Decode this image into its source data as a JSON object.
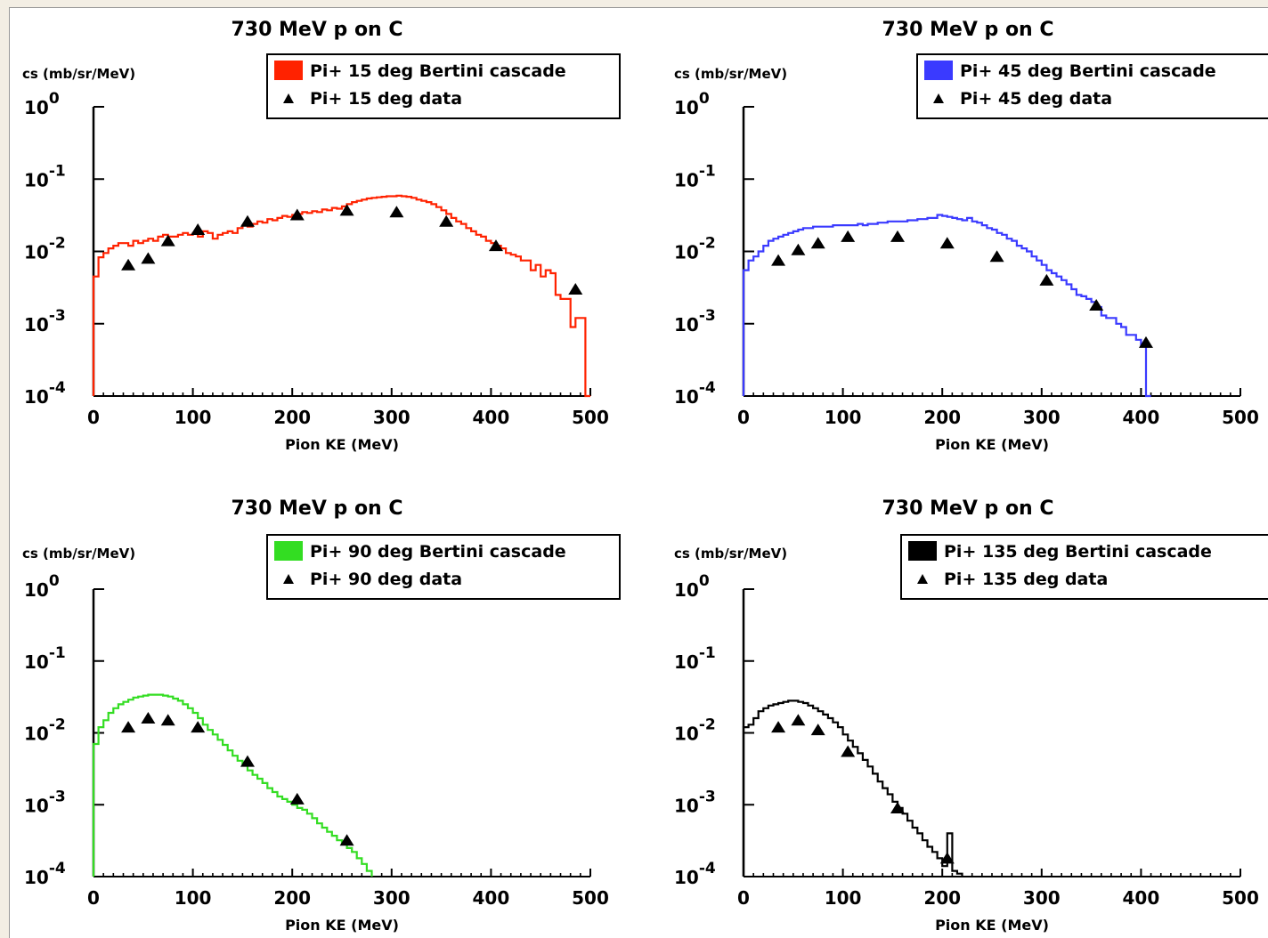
{
  "chart_data": [
    {
      "type": "line",
      "title": "730 MeV p on C",
      "ylabel": "cs (mb/sr/MeV)",
      "xlabel": "Pion KE (MeV)",
      "xlim": [
        0,
        500
      ],
      "ylim": [
        0.0001,
        1
      ],
      "yscale": "log",
      "xticks": [
        "0",
        "100",
        "200",
        "300",
        "400",
        "500"
      ],
      "yticks": [
        {
          "base": "10",
          "exp": "0"
        },
        {
          "base": "10",
          "exp": "-1"
        },
        {
          "base": "10",
          "exp": "-2"
        },
        {
          "base": "10",
          "exp": "-3"
        },
        {
          "base": "10",
          "exp": "-4"
        }
      ],
      "legend_placement": "top-right",
      "series": [
        {
          "name": "Pi+ 15 deg Bertini cascade",
          "style": "histogram",
          "color": "#ff2200",
          "x": [
            0,
            5,
            10,
            15,
            20,
            25,
            30,
            35,
            40,
            45,
            50,
            55,
            60,
            65,
            70,
            75,
            80,
            85,
            90,
            95,
            100,
            105,
            110,
            115,
            120,
            125,
            130,
            135,
            140,
            145,
            150,
            155,
            160,
            165,
            170,
            175,
            180,
            185,
            190,
            195,
            200,
            205,
            210,
            215,
            220,
            225,
            230,
            235,
            240,
            245,
            250,
            255,
            260,
            265,
            270,
            275,
            280,
            285,
            290,
            295,
            300,
            305,
            310,
            315,
            320,
            325,
            330,
            335,
            340,
            345,
            350,
            355,
            360,
            365,
            370,
            375,
            380,
            385,
            390,
            395,
            400,
            405,
            410,
            415,
            420,
            425,
            430,
            435,
            440,
            445,
            450,
            455,
            460,
            465,
            470,
            475,
            480,
            485,
            490,
            495
          ],
          "y": [
            0.0045,
            0.0083,
            0.0095,
            0.011,
            0.012,
            0.013,
            0.013,
            0.012,
            0.014,
            0.013,
            0.014,
            0.015,
            0.014,
            0.016,
            0.017,
            0.016,
            0.016,
            0.017,
            0.018,
            0.017,
            0.018,
            0.016,
            0.019,
            0.018,
            0.015,
            0.017,
            0.018,
            0.019,
            0.018,
            0.021,
            0.023,
            0.022,
            0.024,
            0.026,
            0.025,
            0.028,
            0.027,
            0.029,
            0.031,
            0.03,
            0.032,
            0.033,
            0.035,
            0.034,
            0.036,
            0.035,
            0.038,
            0.037,
            0.04,
            0.039,
            0.042,
            0.045,
            0.048,
            0.05,
            0.052,
            0.054,
            0.055,
            0.056,
            0.057,
            0.058,
            0.058,
            0.059,
            0.058,
            0.057,
            0.055,
            0.052,
            0.05,
            0.048,
            0.045,
            0.041,
            0.037,
            0.033,
            0.029,
            0.026,
            0.024,
            0.021,
            0.019,
            0.017,
            0.016,
            0.014,
            0.013,
            0.012,
            0.011,
            0.0095,
            0.009,
            0.0085,
            0.0075,
            0.0075,
            0.0055,
            0.0065,
            0.0045,
            0.0055,
            0.005,
            0.0025,
            0.0022,
            0.0022,
            0.0009,
            0.0012,
            0.0012,
            0.0001
          ]
        },
        {
          "name": "Pi+ 15 deg data",
          "style": "markers",
          "color": "#000000",
          "x": [
            35,
            55,
            75,
            105,
            155,
            205,
            255,
            305,
            355,
            405,
            485
          ],
          "y": [
            0.0065,
            0.008,
            0.014,
            0.02,
            0.026,
            0.032,
            0.037,
            0.035,
            0.026,
            0.012,
            0.003
          ]
        }
      ]
    },
    {
      "type": "line",
      "title": "730 MeV p on C",
      "ylabel": "cs (mb/sr/MeV)",
      "xlabel": "Pion KE (MeV)",
      "xlim": [
        0,
        500
      ],
      "ylim": [
        0.0001,
        1
      ],
      "yscale": "log",
      "xticks": [
        "0",
        "100",
        "200",
        "300",
        "400",
        "500"
      ],
      "yticks": [
        {
          "base": "10",
          "exp": "0"
        },
        {
          "base": "10",
          "exp": "-1"
        },
        {
          "base": "10",
          "exp": "-2"
        },
        {
          "base": "10",
          "exp": "-3"
        },
        {
          "base": "10",
          "exp": "-4"
        }
      ],
      "legend_placement": "top-right",
      "series": [
        {
          "name": "Pi+ 45 deg Bertini cascade",
          "style": "histogram",
          "color": "#3a3aff",
          "x": [
            0,
            5,
            10,
            15,
            20,
            25,
            30,
            35,
            40,
            45,
            50,
            55,
            60,
            65,
            70,
            75,
            80,
            85,
            90,
            95,
            100,
            105,
            110,
            115,
            120,
            125,
            130,
            135,
            140,
            145,
            150,
            155,
            160,
            165,
            170,
            175,
            180,
            185,
            190,
            195,
            200,
            205,
            210,
            215,
            220,
            225,
            230,
            235,
            240,
            245,
            250,
            255,
            260,
            265,
            270,
            275,
            280,
            285,
            290,
            295,
            300,
            305,
            310,
            315,
            320,
            325,
            330,
            335,
            340,
            345,
            350,
            355,
            360,
            365,
            370,
            375,
            380,
            385,
            390,
            395,
            400,
            405
          ],
          "y": [
            0.0055,
            0.0075,
            0.0085,
            0.01,
            0.012,
            0.014,
            0.015,
            0.016,
            0.017,
            0.018,
            0.019,
            0.02,
            0.021,
            0.021,
            0.022,
            0.022,
            0.022,
            0.022,
            0.023,
            0.023,
            0.023,
            0.023,
            0.023,
            0.024,
            0.023,
            0.024,
            0.024,
            0.025,
            0.025,
            0.026,
            0.026,
            0.026,
            0.026,
            0.027,
            0.027,
            0.028,
            0.028,
            0.029,
            0.029,
            0.032,
            0.031,
            0.03,
            0.029,
            0.028,
            0.027,
            0.029,
            0.026,
            0.025,
            0.023,
            0.021,
            0.02,
            0.018,
            0.017,
            0.015,
            0.014,
            0.012,
            0.011,
            0.01,
            0.0085,
            0.0075,
            0.0065,
            0.0055,
            0.005,
            0.0045,
            0.004,
            0.0035,
            0.003,
            0.0025,
            0.0024,
            0.0022,
            0.002,
            0.0017,
            0.0013,
            0.0012,
            0.0012,
            0.001,
            0.0009,
            0.0007,
            0.0007,
            0.0006,
            0.0005,
            0.0001
          ]
        },
        {
          "name": "Pi+ 45 deg data",
          "style": "markers",
          "color": "#000000",
          "x": [
            35,
            55,
            75,
            105,
            155,
            205,
            255,
            305,
            355,
            405
          ],
          "y": [
            0.0075,
            0.0105,
            0.013,
            0.016,
            0.016,
            0.013,
            0.0085,
            0.004,
            0.0018,
            0.00055
          ]
        }
      ]
    },
    {
      "type": "line",
      "title": "730 MeV p on C",
      "ylabel": "cs (mb/sr/MeV)",
      "xlabel": "Pion KE (MeV)",
      "xlim": [
        0,
        500
      ],
      "ylim": [
        0.0001,
        1
      ],
      "yscale": "log",
      "xticks": [
        "0",
        "100",
        "200",
        "300",
        "400",
        "500"
      ],
      "yticks": [
        {
          "base": "10",
          "exp": "0"
        },
        {
          "base": "10",
          "exp": "-1"
        },
        {
          "base": "10",
          "exp": "-2"
        },
        {
          "base": "10",
          "exp": "-3"
        },
        {
          "base": "10",
          "exp": "-4"
        }
      ],
      "legend_placement": "top-right",
      "series": [
        {
          "name": "Pi+ 90 deg Bertini cascade",
          "style": "histogram",
          "color": "#33dd22",
          "x": [
            0,
            5,
            10,
            15,
            20,
            25,
            30,
            35,
            40,
            45,
            50,
            55,
            60,
            65,
            70,
            75,
            80,
            85,
            90,
            95,
            100,
            105,
            110,
            115,
            120,
            125,
            130,
            135,
            140,
            145,
            150,
            155,
            160,
            165,
            170,
            175,
            180,
            185,
            190,
            195,
            200,
            205,
            210,
            215,
            220,
            225,
            230,
            235,
            240,
            245,
            250,
            255,
            260,
            265,
            270,
            275
          ],
          "y": [
            0.007,
            0.012,
            0.015,
            0.019,
            0.022,
            0.025,
            0.027,
            0.029,
            0.031,
            0.032,
            0.033,
            0.034,
            0.034,
            0.034,
            0.033,
            0.032,
            0.03,
            0.028,
            0.025,
            0.022,
            0.019,
            0.016,
            0.013,
            0.011,
            0.0095,
            0.008,
            0.0068,
            0.0057,
            0.0048,
            0.0041,
            0.0035,
            0.003,
            0.0026,
            0.0023,
            0.002,
            0.0017,
            0.0015,
            0.0013,
            0.0012,
            0.0011,
            0.001,
            0.0009,
            0.00085,
            0.00075,
            0.00065,
            0.00055,
            0.00048,
            0.00042,
            0.00037,
            0.00032,
            0.00028,
            0.00025,
            0.00022,
            0.00018,
            0.00015,
            0.00012
          ]
        },
        {
          "name": "Pi+ 90 deg data",
          "style": "markers",
          "color": "#000000",
          "x": [
            35,
            55,
            75,
            105,
            155,
            205,
            255
          ],
          "y": [
            0.012,
            0.016,
            0.015,
            0.012,
            0.004,
            0.0012,
            0.00032
          ]
        }
      ]
    },
    {
      "type": "line",
      "title": "730 MeV p on C",
      "ylabel": "cs (mb/sr/MeV)",
      "xlabel": "Pion KE (MeV)",
      "xlim": [
        0,
        500
      ],
      "ylim": [
        0.0001,
        1
      ],
      "yscale": "log",
      "xticks": [
        "0",
        "100",
        "200",
        "300",
        "400",
        "500"
      ],
      "yticks": [
        {
          "base": "10",
          "exp": "0"
        },
        {
          "base": "10",
          "exp": "-1"
        },
        {
          "base": "10",
          "exp": "-2"
        },
        {
          "base": "10",
          "exp": "-3"
        },
        {
          "base": "10",
          "exp": "-4"
        }
      ],
      "legend_placement": "top-right",
      "series": [
        {
          "name": "Pi+ 135 deg Bertini cascade",
          "style": "histogram",
          "color": "#000000",
          "x": [
            0,
            5,
            10,
            15,
            20,
            25,
            30,
            35,
            40,
            45,
            50,
            55,
            60,
            65,
            70,
            75,
            80,
            85,
            90,
            95,
            100,
            105,
            110,
            115,
            120,
            125,
            130,
            135,
            140,
            145,
            150,
            155,
            160,
            165,
            170,
            175,
            180,
            185,
            190,
            195,
            200,
            205,
            210,
            215
          ],
          "y": [
            0.012,
            0.013,
            0.016,
            0.02,
            0.022,
            0.024,
            0.025,
            0.026,
            0.027,
            0.028,
            0.028,
            0.027,
            0.026,
            0.024,
            0.022,
            0.02,
            0.018,
            0.016,
            0.014,
            0.012,
            0.0095,
            0.0078,
            0.0064,
            0.0052,
            0.0042,
            0.0034,
            0.0027,
            0.0021,
            0.0017,
            0.0014,
            0.0011,
            0.0009,
            0.00075,
            0.0006,
            0.00048,
            0.0004,
            0.00032,
            0.00026,
            0.00022,
            0.00018,
            0.00014,
            0.0004,
            0.00012,
            0.00011
          ]
        },
        {
          "name": "Pi+ 135 deg data",
          "style": "markers",
          "color": "#000000",
          "x": [
            35,
            55,
            75,
            105,
            155,
            205
          ],
          "y": [
            0.012,
            0.015,
            0.011,
            0.0055,
            0.0009,
            0.00018
          ]
        }
      ]
    }
  ]
}
